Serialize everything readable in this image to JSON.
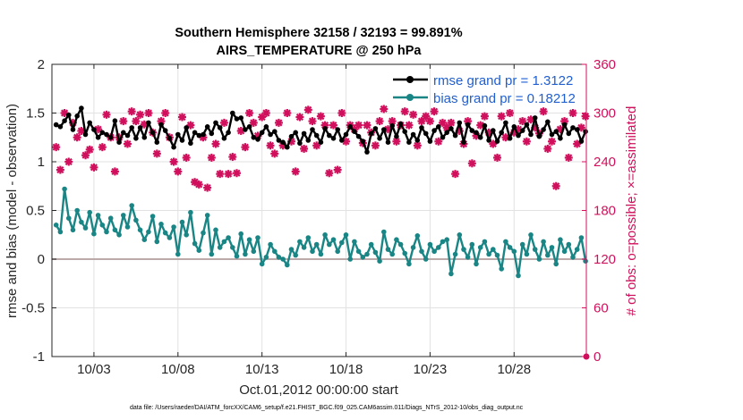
{
  "chart_data": {
    "type": "line",
    "title": "Southern Hemisphere 32158 / 32193 = 99.891%",
    "subtitle": "AIRS_TEMPERATURE @ 250 hPa",
    "xlabel": "Oct.01,2012 00:00:00 start",
    "ylabel": "rmse and bias (model - observation)",
    "y2label": "# of obs: o=possible; ×=assimilated",
    "footnote": "data file: /Users/raeder/DAI/ATM_forcXX/CAM6_setup/f.e21.FHIST_BGC.f09_025.CAM6assim.011/Diags_NTrS_2012-10/obs_diag_output.nc",
    "xlim": [
      0.5,
      32.3
    ],
    "ylim": [
      -1,
      2
    ],
    "y2lim": [
      0,
      360
    ],
    "grid": true,
    "legend_position": "top-right",
    "x_ticks": [
      {
        "value": 3,
        "label": "10/03"
      },
      {
        "value": 8,
        "label": "10/08"
      },
      {
        "value": 13,
        "label": "10/13"
      },
      {
        "value": 18,
        "label": "10/18"
      },
      {
        "value": 23,
        "label": "10/23"
      },
      {
        "value": 28,
        "label": "10/28"
      }
    ],
    "y_ticks": [
      {
        "value": -1,
        "label": "-1"
      },
      {
        "value": -0.5,
        "label": "-0.5"
      },
      {
        "value": 0,
        "label": "0"
      },
      {
        "value": 0.5,
        "label": "0.5"
      },
      {
        "value": 1,
        "label": "1"
      },
      {
        "value": 1.5,
        "label": "1.5"
      },
      {
        "value": 2,
        "label": "2"
      }
    ],
    "y2_ticks": [
      {
        "value": 0,
        "label": "0"
      },
      {
        "value": 60,
        "label": "60"
      },
      {
        "value": 120,
        "label": "120"
      },
      {
        "value": 180,
        "label": "180"
      },
      {
        "value": 240,
        "label": "240"
      },
      {
        "value": 300,
        "label": "300"
      },
      {
        "value": 360,
        "label": "360"
      }
    ],
    "x_start": 0.75,
    "x_step": 0.25,
    "series": [
      {
        "name": "rmse grand pr = 1.3122",
        "color": "#000000",
        "marker": "circle",
        "values": [
          1.38,
          1.36,
          1.42,
          1.48,
          1.33,
          1.47,
          1.55,
          1.28,
          1.4,
          1.33,
          1.25,
          1.3,
          1.28,
          1.25,
          1.42,
          1.2,
          1.3,
          1.27,
          1.35,
          1.24,
          1.35,
          1.25,
          1.4,
          1.3,
          1.2,
          1.38,
          1.32,
          1.24,
          1.15,
          1.28,
          1.22,
          1.35,
          1.19,
          1.3,
          1.27,
          1.28,
          1.36,
          1.29,
          1.4,
          1.35,
          1.24,
          1.3,
          1.5,
          1.44,
          1.45,
          1.33,
          1.36,
          1.25,
          1.23,
          1.3,
          1.36,
          1.28,
          1.31,
          1.22,
          1.2,
          1.15,
          1.26,
          1.3,
          1.19,
          1.29,
          1.22,
          1.33,
          1.27,
          1.2,
          1.34,
          1.27,
          1.24,
          1.33,
          1.22,
          1.28,
          1.36,
          1.31,
          1.26,
          1.21,
          1.1,
          1.29,
          1.34,
          1.24,
          1.33,
          1.2,
          1.37,
          1.26,
          1.39,
          1.31,
          1.2,
          1.28,
          1.22,
          1.35,
          1.29,
          1.21,
          1.32,
          1.36,
          1.25,
          1.3,
          1.34,
          1.27,
          1.4,
          1.2,
          1.38,
          1.32,
          1.3,
          1.25,
          1.37,
          1.22,
          1.32,
          1.21,
          1.3,
          1.4,
          1.24,
          1.36,
          1.27,
          1.32,
          1.38,
          1.28,
          1.45,
          1.26,
          1.33,
          1.41,
          1.28,
          1.31,
          1.24,
          1.38,
          1.29,
          1.35,
          1.33,
          1.21,
          1.31,
          1.37,
          1.22,
          1.29,
          1.43,
          1.31,
          1.39,
          1.26,
          1.32,
          1.4,
          1.33,
          1.26,
          1.37,
          1.3,
          1.35,
          1.31,
          1.36,
          1.28,
          1.33,
          1.39,
          1.24,
          1.4,
          1.29,
          1.35,
          1.45,
          1.31,
          1.37,
          1.28,
          1.34,
          1.41,
          1.25,
          1.38,
          1.3,
          1.36,
          1.27,
          1.34,
          1.31,
          1.37,
          1.29,
          1.36,
          1.39,
          1.23,
          1.39,
          1.28,
          1.44,
          1.31,
          1.36,
          1.26,
          1.37,
          1.3,
          1.35,
          1.22,
          1.28,
          1.42,
          1.33,
          1.4,
          1.55,
          1.25,
          1.39,
          1.31,
          1.28,
          1.4,
          1.2,
          1.34,
          1.29,
          1.36,
          1.27,
          1.33
        ]
      },
      {
        "name": "bias grand pr = 0.18212",
        "color": "#1a8585",
        "marker": "circle",
        "values": [
          0.35,
          0.28,
          0.72,
          0.42,
          0.3,
          0.5,
          0.38,
          0.32,
          0.48,
          0.26,
          0.45,
          0.35,
          0.28,
          0.42,
          0.3,
          0.25,
          0.45,
          0.33,
          0.55,
          0.4,
          0.3,
          0.2,
          0.28,
          0.44,
          0.18,
          0.36,
          0.27,
          0.22,
          0.33,
          0.05,
          0.38,
          0.25,
          0.48,
          0.16,
          0.09,
          0.27,
          0.45,
          0.05,
          0.3,
          0.12,
          0.18,
          0.22,
          0.12,
          0.03,
          0.26,
          0.05,
          0.2,
          0.08,
          0.22,
          -0.05,
          0.02,
          0.15,
          0.08,
          0.02,
          0.0,
          -0.06,
          0.1,
          0.04,
          0.18,
          0.12,
          0.22,
          0.08,
          0.15,
          0.05,
          0.25,
          0.15,
          0.2,
          0.08,
          0.17,
          0.25,
          0.0,
          0.18,
          0.08,
          0.02,
          0.05,
          0.15,
          0.07,
          -0.02,
          0.28,
          0.1,
          0.05,
          0.2,
          0.15,
          0.06,
          -0.05,
          0.12,
          0.24,
          0.08,
          0.0,
          0.15,
          0.08,
          0.12,
          0.18,
          0.2,
          -0.15,
          0.05,
          0.25,
          0.1,
          0.02,
          0.15,
          -0.05,
          0.12,
          0.18,
          0.05,
          0.1,
          0.04,
          -0.1,
          0.18,
          0.12,
          0.08,
          -0.17,
          0.15,
          0.05,
          0.25,
          0.1,
          0.0,
          0.18,
          0.04,
          0.12,
          -0.05,
          0.2,
          0.08,
          0.15,
          0.02,
          0.1,
          0.22,
          -0.02,
          0.06,
          0.18,
          0.12,
          0.06,
          0.2,
          0.22,
          0.05,
          0.16,
          0.02,
          -0.02,
          0.2,
          0.14,
          0.08,
          0.24,
          0.0,
          0.12,
          -0.05,
          0.1,
          0.18,
          0.07,
          0.0,
          0.15,
          0.08,
          0.2,
          0.28,
          0.05,
          0.12,
          -0.03,
          0.2,
          0.08,
          0.24,
          0.1,
          0.04,
          -0.05,
          0.15,
          0.1,
          0.02,
          0.18,
          0.05,
          0.12,
          0.0,
          0.22,
          0.08,
          0.05,
          0.2,
          0.12,
          0.05,
          0.25,
          0.1,
          0.15,
          0.38,
          0.22,
          0.42,
          0.2,
          0.12,
          0.3,
          0.18,
          0.1,
          0.22,
          0.08,
          0.02,
          0.25,
          0.1,
          0.15,
          0.05,
          0.18,
          0.12
        ]
      }
    ],
    "obs_series": {
      "axis": "right",
      "color": "#d0105c",
      "marker": "star",
      "values": [
        258,
        230,
        300,
        240,
        288,
        270,
        278,
        248,
        255,
        233,
        280,
        258,
        298,
        270,
        228,
        270,
        290,
        262,
        302,
        290,
        298,
        286,
        300,
        276,
        250,
        290,
        300,
        270,
        240,
        228,
        295,
        245,
        285,
        215,
        212,
        270,
        208,
        245,
        262,
        225,
        288,
        225,
        246,
        226,
        278,
        258,
        300,
        288,
        272,
        295,
        300,
        260,
        250,
        288,
        260,
        300,
        265,
        228,
        295,
        256,
        304,
        290,
        260,
        296,
        285,
        226,
        285,
        230,
        300,
        265,
        285,
        280,
        285,
        263,
        285,
        276,
        260,
        290,
        305,
        280,
        290,
        265,
        285,
        302,
        285,
        298,
        260,
        290,
        296,
        290,
        302,
        265,
        288,
        282,
        288,
        225,
        278,
        262,
        290,
        238,
        272,
        285,
        296,
        276,
        262,
        245,
        296,
        270,
        300,
        276,
        280,
        290,
        265,
        292,
        282,
        275,
        302,
        256,
        265,
        210,
        280,
        290,
        245,
        300,
        262,
        282,
        296,
        290,
        275,
        286,
        301,
        281,
        262,
        285,
        292,
        168,
        278,
        296,
        286,
        300,
        285,
        262,
        288,
        292,
        278,
        302,
        300,
        270,
        284,
        296,
        288,
        265,
        278,
        300,
        291,
        265,
        288,
        296,
        302,
        288,
        285,
        265,
        296,
        290,
        285,
        262,
        278,
        300,
        290,
        285,
        305,
        286,
        278,
        296,
        290,
        300,
        262,
        272,
        295,
        256,
        282,
        305,
        284,
        292,
        288,
        246,
        262,
        278,
        290
      ]
    }
  }
}
